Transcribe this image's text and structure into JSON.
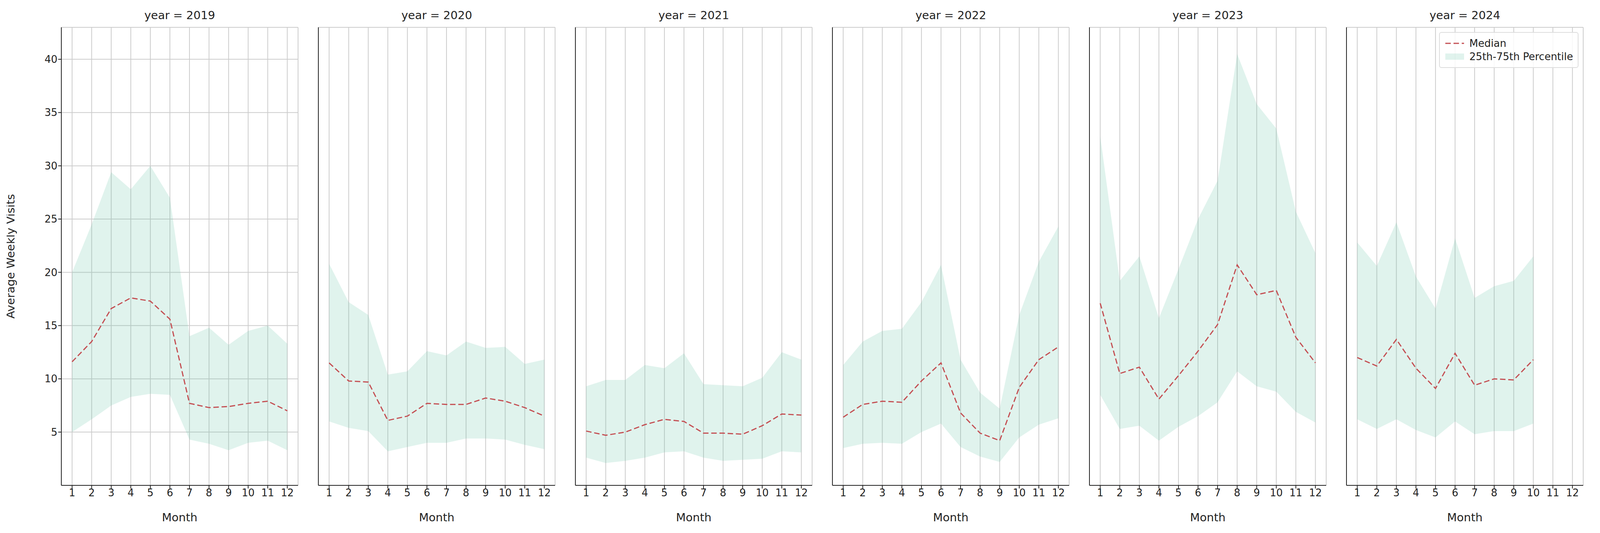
{
  "chart_data": [
    {
      "type": "line",
      "title": "year = 2019",
      "x_label": "Month",
      "y_label": "Average Weekly Visits",
      "x": [
        1,
        2,
        3,
        4,
        5,
        6,
        7,
        8,
        9,
        10,
        11,
        12
      ],
      "xlim": [
        0.45,
        12.55
      ],
      "xticks": [
        1,
        2,
        3,
        4,
        5,
        6,
        7,
        8,
        9,
        10,
        11,
        12
      ],
      "ylim": [
        0,
        43
      ],
      "yticks": [
        5,
        10,
        15,
        20,
        25,
        30,
        35,
        40
      ],
      "grid": true,
      "series": [
        {
          "name": "Median",
          "type": "line",
          "color": "#c44e52",
          "line_style": "dashed",
          "values": [
            11.6,
            13.5,
            16.6,
            17.6,
            17.3,
            15.6,
            7.7,
            7.3,
            7.4,
            7.7,
            7.9,
            7.0
          ]
        },
        {
          "name": "25th-75th Percentile",
          "type": "area",
          "color": "#66c2a5",
          "low": [
            5.0,
            6.2,
            7.5,
            8.3,
            8.6,
            8.5,
            4.3,
            3.9,
            3.3,
            4.0,
            4.2,
            3.3
          ],
          "high": [
            20.0,
            24.5,
            29.4,
            27.8,
            30.0,
            27.0,
            14.0,
            14.8,
            13.2,
            14.5,
            15.0,
            13.3
          ]
        }
      ]
    },
    {
      "type": "line",
      "title": "year = 2020",
      "x_label": "Month",
      "tick_labels": "x",
      "x": [
        1,
        2,
        3,
        4,
        5,
        6,
        7,
        8,
        9,
        10,
        11,
        12
      ],
      "xlim": [
        0.45,
        12.55
      ],
      "xticks": [
        1,
        2,
        3,
        4,
        5,
        6,
        7,
        8,
        9,
        10,
        11,
        12
      ],
      "ylim": [
        0,
        43
      ],
      "yticks": [
        5,
        10,
        15,
        20,
        25,
        30,
        35,
        40
      ],
      "grid": true,
      "series": [
        {
          "name": "Median",
          "type": "line",
          "color": "#c44e52",
          "line_style": "dashed",
          "values": [
            11.5,
            9.8,
            9.7,
            6.1,
            6.5,
            7.7,
            7.6,
            7.6,
            8.2,
            7.9,
            7.3,
            6.5
          ]
        },
        {
          "name": "25th-75th Percentile",
          "type": "area",
          "color": "#66c2a5",
          "low": [
            6.0,
            5.4,
            5.1,
            3.2,
            3.6,
            4.0,
            4.0,
            4.4,
            4.4,
            4.3,
            3.8,
            3.4
          ],
          "high": [
            20.8,
            17.2,
            16.0,
            10.4,
            10.7,
            12.6,
            12.2,
            13.5,
            12.9,
            13.0,
            11.4,
            11.8
          ]
        }
      ]
    },
    {
      "type": "line",
      "title": "year = 2021",
      "x_label": "Month",
      "tick_labels": "x",
      "x": [
        1,
        2,
        3,
        4,
        5,
        6,
        7,
        8,
        9,
        10,
        11,
        12
      ],
      "xlim": [
        0.45,
        12.55
      ],
      "xticks": [
        1,
        2,
        3,
        4,
        5,
        6,
        7,
        8,
        9,
        10,
        11,
        12
      ],
      "ylim": [
        0,
        43
      ],
      "yticks": [
        5,
        10,
        15,
        20,
        25,
        30,
        35,
        40
      ],
      "grid": true,
      "series": [
        {
          "name": "Median",
          "type": "line",
          "color": "#c44e52",
          "line_style": "dashed",
          "values": [
            5.1,
            4.7,
            5.0,
            5.7,
            6.2,
            6.0,
            4.9,
            4.9,
            4.8,
            5.6,
            6.7,
            6.6
          ]
        },
        {
          "name": "25th-75th Percentile",
          "type": "area",
          "color": "#66c2a5",
          "low": [
            2.6,
            2.1,
            2.3,
            2.6,
            3.1,
            3.2,
            2.6,
            2.3,
            2.4,
            2.5,
            3.2,
            3.1
          ],
          "high": [
            9.3,
            9.9,
            9.9,
            11.3,
            11.0,
            12.4,
            9.5,
            9.4,
            9.3,
            10.1,
            12.5,
            11.8
          ]
        }
      ]
    },
    {
      "type": "line",
      "title": "year = 2022",
      "x_label": "Month",
      "tick_labels": "x",
      "x": [
        1,
        2,
        3,
        4,
        5,
        6,
        7,
        8,
        9,
        10,
        11,
        12
      ],
      "xlim": [
        0.45,
        12.55
      ],
      "xticks": [
        1,
        2,
        3,
        4,
        5,
        6,
        7,
        8,
        9,
        10,
        11,
        12
      ],
      "ylim": [
        0,
        43
      ],
      "yticks": [
        5,
        10,
        15,
        20,
        25,
        30,
        35,
        40
      ],
      "grid": true,
      "series": [
        {
          "name": "Median",
          "type": "line",
          "color": "#c44e52",
          "line_style": "dashed",
          "values": [
            6.4,
            7.6,
            7.9,
            7.8,
            9.8,
            11.5,
            6.8,
            4.9,
            4.2,
            9.2,
            11.8,
            13.0
          ]
        },
        {
          "name": "25th-75th Percentile",
          "type": "area",
          "color": "#66c2a5",
          "low": [
            3.5,
            3.9,
            4.0,
            3.9,
            5.0,
            5.8,
            3.6,
            2.7,
            2.2,
            4.5,
            5.7,
            6.3
          ],
          "high": [
            11.3,
            13.5,
            14.5,
            14.7,
            17.2,
            20.7,
            11.8,
            8.7,
            7.2,
            16.0,
            21.0,
            24.3
          ]
        }
      ]
    },
    {
      "type": "line",
      "title": "year = 2023",
      "x_label": "Month",
      "tick_labels": "x",
      "x": [
        1,
        2,
        3,
        4,
        5,
        6,
        7,
        8,
        9,
        10,
        11,
        12
      ],
      "xlim": [
        0.45,
        12.55
      ],
      "xticks": [
        1,
        2,
        3,
        4,
        5,
        6,
        7,
        8,
        9,
        10,
        11,
        12
      ],
      "ylim": [
        0,
        43
      ],
      "yticks": [
        5,
        10,
        15,
        20,
        25,
        30,
        35,
        40
      ],
      "grid": true,
      "series": [
        {
          "name": "Median",
          "type": "line",
          "color": "#c44e52",
          "line_style": "dashed",
          "values": [
            17.1,
            10.5,
            11.1,
            8.1,
            10.3,
            12.6,
            15.1,
            20.7,
            17.9,
            18.3,
            13.9,
            11.5
          ]
        },
        {
          "name": "25th-75th Percentile",
          "type": "area",
          "color": "#66c2a5",
          "low": [
            8.5,
            5.3,
            5.6,
            4.2,
            5.5,
            6.5,
            7.8,
            10.7,
            9.3,
            8.8,
            6.9,
            5.9
          ],
          "high": [
            32.8,
            19.2,
            21.5,
            15.7,
            20.3,
            25.0,
            28.6,
            40.5,
            35.8,
            33.5,
            25.7,
            21.8
          ]
        }
      ]
    },
    {
      "type": "line",
      "title": "year = 2024",
      "x_label": "Month",
      "tick_labels": "x",
      "legend": "upper right",
      "x": [
        1,
        2,
        3,
        4,
        5,
        6,
        7,
        8,
        9,
        10
      ],
      "xlim": [
        0.45,
        12.55
      ],
      "xticks": [
        1,
        2,
        3,
        4,
        5,
        6,
        7,
        8,
        9,
        10,
        11,
        12
      ],
      "ylim": [
        0,
        43
      ],
      "yticks": [
        5,
        10,
        15,
        20,
        25,
        30,
        35,
        40
      ],
      "grid": true,
      "series": [
        {
          "name": "Median",
          "type": "line",
          "color": "#c44e52",
          "line_style": "dashed",
          "values": [
            12.0,
            11.2,
            13.7,
            11.0,
            9.1,
            12.4,
            9.4,
            10.0,
            9.9,
            11.8
          ]
        },
        {
          "name": "25th-75th Percentile",
          "type": "area",
          "color": "#66c2a5",
          "low": [
            6.2,
            5.3,
            6.2,
            5.2,
            4.5,
            6.0,
            4.8,
            5.1,
            5.1,
            5.8
          ],
          "high": [
            22.8,
            20.6,
            24.7,
            19.6,
            16.6,
            23.2,
            17.6,
            18.7,
            19.2,
            21.5
          ]
        }
      ]
    }
  ]
}
